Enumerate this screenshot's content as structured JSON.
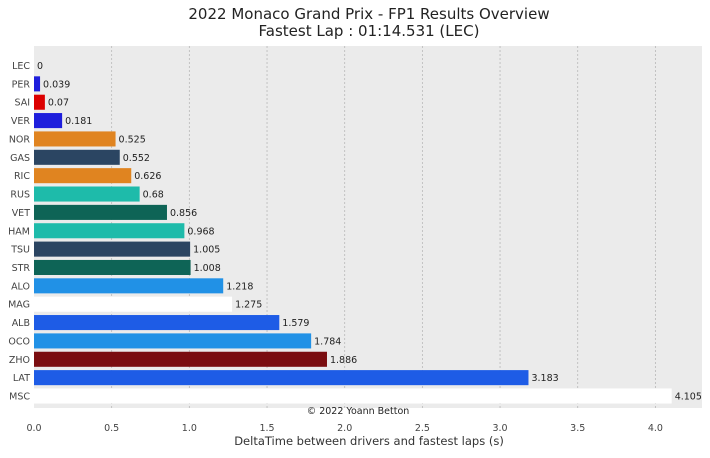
{
  "chart_data": {
    "type": "bar",
    "orientation": "horizontal",
    "title": "2022 Monaco Grand Prix - FP1 Results Overview",
    "subtitle": "Fastest Lap : 01:14.531 (LEC)",
    "xlabel": "DeltaTime between drivers and fastest laps (s)",
    "ylabel": "",
    "xlim": [
      0,
      4.3
    ],
    "xticks": [
      "0.0",
      "0.5",
      "1.0",
      "1.5",
      "2.0",
      "2.5",
      "3.0",
      "3.5",
      "4.0"
    ],
    "grid": true,
    "credit": "© 2022 Yoann Betton",
    "categories": [
      "LEC",
      "PER",
      "SAI",
      "VER",
      "NOR",
      "GAS",
      "RIC",
      "RUS",
      "VET",
      "HAM",
      "TSU",
      "STR",
      "ALO",
      "MAG",
      "ALB",
      "OCO",
      "ZHO",
      "LAT",
      "MSC"
    ],
    "values": [
      0,
      0.039,
      0.07,
      0.181,
      0.525,
      0.552,
      0.626,
      0.68,
      0.856,
      0.968,
      1.005,
      1.008,
      1.218,
      1.275,
      1.579,
      1.784,
      1.886,
      3.183,
      4.105
    ],
    "labels": [
      "0",
      "0.039",
      "0.07",
      "0.181",
      "0.525",
      "0.552",
      "0.626",
      "0.68",
      "0.856",
      "0.968",
      "1.005",
      "1.008",
      "1.218",
      "1.275",
      "1.579",
      "1.784",
      "1.886",
      "3.183",
      "4.105"
    ],
    "colors": [
      "#dc0000",
      "#1e1edc",
      "#dc0000",
      "#1e1edc",
      "#e08420",
      "#2b4562",
      "#e08420",
      "#1ebbaa",
      "#0e6456",
      "#1ebbaa",
      "#2b4562",
      "#0e6456",
      "#2191e6",
      "#ffffff",
      "#1e5ce6",
      "#2191e6",
      "#7a0d10",
      "#1e5ce6",
      "#ffffff"
    ]
  }
}
